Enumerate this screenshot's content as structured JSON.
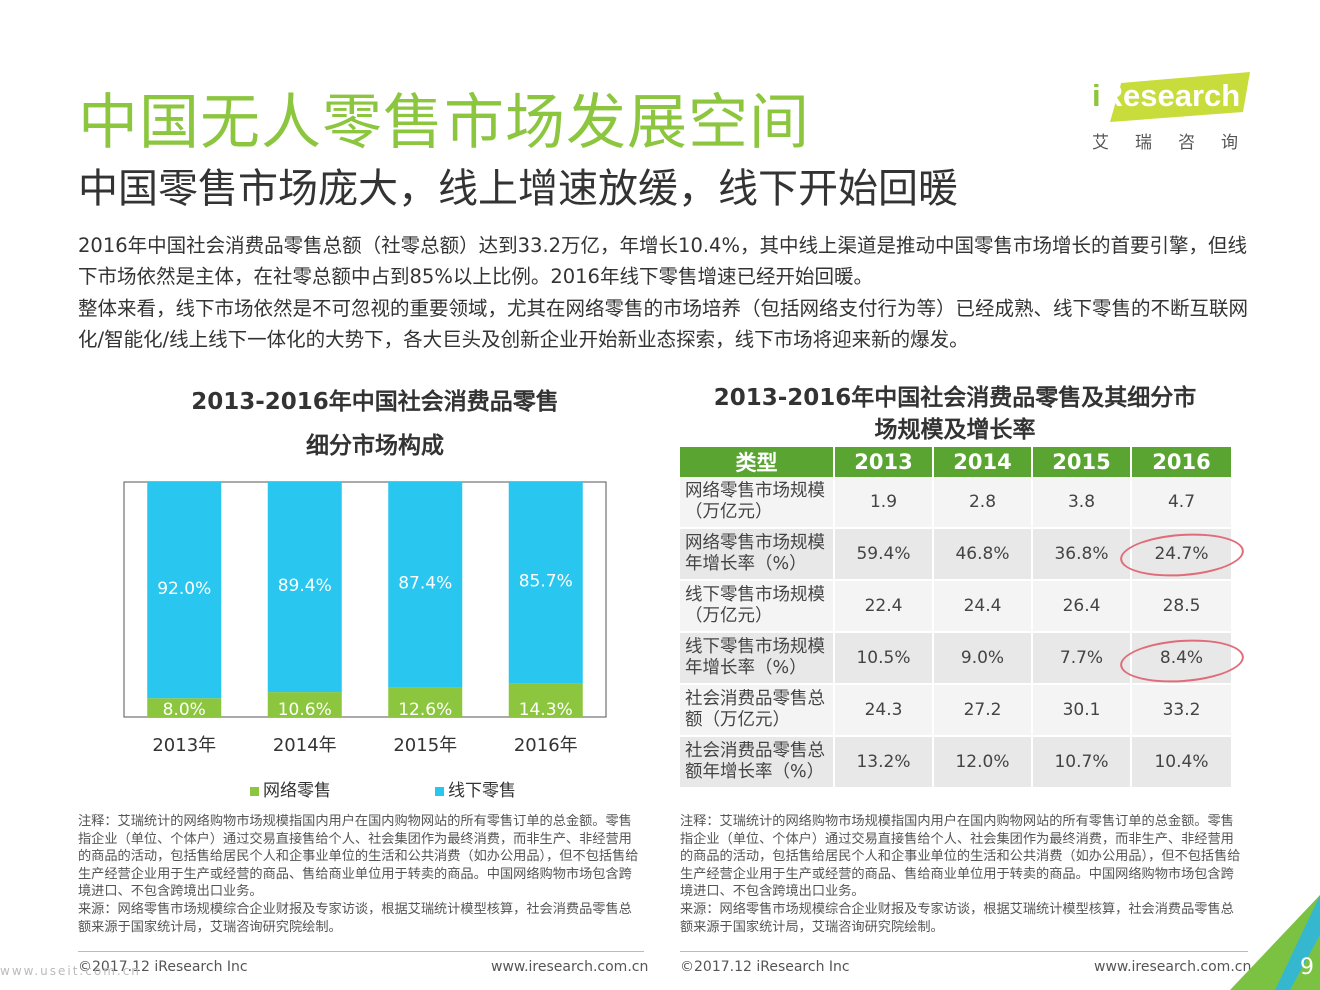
{
  "header": {
    "title": "中国无人零售市场发展空间",
    "subtitle": "中国零售市场庞大，线上增速放缓，线下开始回暖",
    "paragraph1": "2016年中国社会消费品零售总额（社零总额）达到33.2万亿，年增长10.4%，其中线上渠道是推动中国零售市场增长的首要引擎，但线下市场依然是主体，在社零总额中占到85%以上比例。2016年线下零售增速已经开始回暖。",
    "paragraph2": "整体来看，线下市场依然是不可忽视的重要领域，尤其在网络零售的市场培养（包括网络支付行为等）已经成熟、线下零售的不断互联网化/智能化/线上线下一体化的大势下，各大巨头及创新企业开始新业态探索，线下市场将迎来新的爆发。"
  },
  "logo": {
    "prefix": "i",
    "text": "Research",
    "subtext": "艾瑞咨询"
  },
  "left_chart": {
    "title_line1": "2013-2016年中国社会消费品零售",
    "title_line2": "细分市场构成"
  },
  "chart_data": {
    "type": "bar",
    "stacked": true,
    "categories": [
      "2013年",
      "2014年",
      "2015年",
      "2016年"
    ],
    "series": [
      {
        "name": "网络零售",
        "values": [
          8.0,
          10.6,
          12.6,
          14.3
        ],
        "labels": [
          "8.0%",
          "10.6%",
          "12.6%",
          "14.3%"
        ],
        "color": "#8cc63f"
      },
      {
        "name": "线下零售",
        "values": [
          92.0,
          89.4,
          87.4,
          85.7
        ],
        "labels": [
          "92.0%",
          "89.4%",
          "87.4%",
          "85.7%"
        ],
        "color": "#29c6ef"
      }
    ],
    "ylim": [
      0,
      100
    ]
  },
  "right_table": {
    "title_line1": "2013-2016年中国社会消费品零售及其细分市",
    "title_line2": "场规模及增长率",
    "headers": [
      "类型",
      "2013",
      "2014",
      "2015",
      "2016"
    ],
    "rows": [
      {
        "label": "网络零售市场规模（万亿元）",
        "values": [
          "1.9",
          "2.8",
          "3.8",
          "4.7"
        ]
      },
      {
        "label": "网络零售市场规模年增长率（%）",
        "values": [
          "59.4%",
          "46.8%",
          "36.8%",
          "24.7%"
        ]
      },
      {
        "label": "线下零售市场规模（万亿元）",
        "values": [
          "22.4",
          "24.4",
          "26.4",
          "28.5"
        ]
      },
      {
        "label": "线下零售市场规模年增长率（%）",
        "values": [
          "10.5%",
          "9.0%",
          "7.7%",
          "8.4%"
        ]
      },
      {
        "label": "社会消费品零售总额（万亿元）",
        "values": [
          "24.3",
          "27.2",
          "30.1",
          "33.2"
        ]
      },
      {
        "label": "社会消费品零售总额年增长率（%）",
        "values": [
          "13.2%",
          "12.0%",
          "10.7%",
          "10.4%"
        ]
      }
    ],
    "highlight_color": "#e06c7a"
  },
  "notes": {
    "left": "注释：艾瑞统计的网络购物市场规模指国内用户在国内购物网站的所有零售订单的总金额。零售指企业（单位、个体户）通过交易直接售给个人、社会集团作为最终消费，而非生产、非经营用的商品的活动，包括售给居民个人和企事业单位的生活和公共消费（如办公用品），但不包括售给生产经营企业用于生产或经营的商品、售给商业单位用于转卖的商品。中国网络购物市场包含跨境进口、不包含跨境出口业务。",
    "left_source": "来源：网络零售市场规模综合企业财报及专家访谈，根据艾瑞统计模型核算，社会消费品零售总额来源于国家统计局，艾瑞咨询研究院绘制。",
    "right": "注释：艾瑞统计的网络购物市场规模指国内用户在国内购物网站的所有零售订单的总金额。零售指企业（单位、个体户）通过交易直接售给个人、社会集团作为最终消费，而非生产、非经营用的商品的活动，包括售给居民个人和企事业单位的生活和公共消费（如办公用品），但不包括售给生产经营企业用于生产或经营的商品、售给商业单位用于转卖的商品。中国网络购物市场包含跨境进口、不包含跨境出口业务。",
    "right_source": "来源：网络零售市场规模综合企业财报及专家访谈，根据艾瑞统计模型核算，社会消费品零售总额来源于国家统计局，艾瑞咨询研究院绘制。"
  },
  "footer": {
    "copyright": "©2017.12 iResearch Inc",
    "website": "www.iresearch.com.cn",
    "page_number": "9",
    "watermark": "www.useit.com.cn"
  },
  "colors": {
    "title_green": "#8cc63f",
    "header_green": "#5aa532",
    "offline_blue": "#29c6ef",
    "online_green": "#8cc63f",
    "corner_green": "#7cc242",
    "corner_blue": "#29b6e8"
  }
}
